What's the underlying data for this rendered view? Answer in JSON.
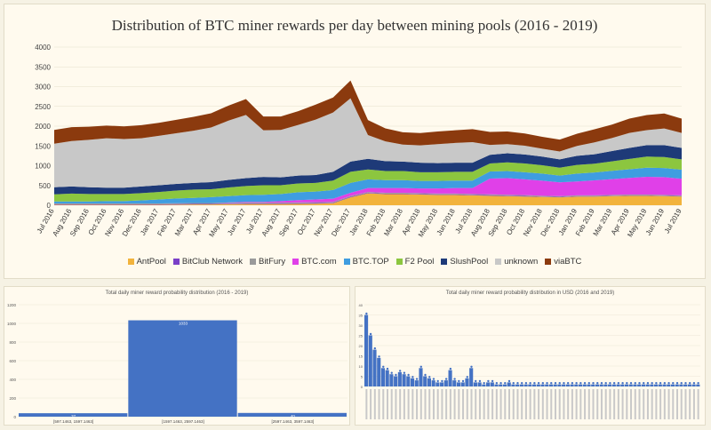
{
  "chart_data": [
    {
      "type": "area",
      "stacked": true,
      "title": "Distribution of BTC miner rewards per day between mining pools  (2016 - 2019)",
      "ylim": [
        0,
        4000
      ],
      "yticks": [
        "0",
        "500",
        "1000",
        "1500",
        "2000",
        "2500",
        "3000",
        "3500",
        "4000"
      ],
      "x": [
        "Jul 2016",
        "Aug 2016",
        "Sep 2016",
        "Oct 2016",
        "Nov 2016",
        "Dec 2016",
        "Jan 2017",
        "Feb 2017",
        "Mar 2017",
        "Apr 2017",
        "May 2017",
        "Jun 2017",
        "Jul 2017",
        "Aug 2017",
        "Sep 2017",
        "Oct 2017",
        "Nov 2017",
        "Dec 2017",
        "Jan 2018",
        "Feb 2018",
        "Mar 2018",
        "Apr 2018",
        "May 2018",
        "Jun 2018",
        "Jul 2018",
        "Aug 2018",
        "Sep 2018",
        "Oct 2018",
        "Nov 2018",
        "Dec 2018",
        "Jan 2019",
        "Feb 2019",
        "Mar 2019",
        "Apr 2019",
        "May 2019",
        "Jun 2019",
        "Jul 2019"
      ],
      "series": [
        {
          "name": "AntPool",
          "color": "#f2b33c",
          "values": [
            10,
            10,
            10,
            10,
            10,
            10,
            10,
            15,
            20,
            20,
            25,
            30,
            30,
            30,
            35,
            40,
            50,
            200,
            300,
            280,
            280,
            270,
            260,
            260,
            250,
            240,
            230,
            220,
            210,
            200,
            220,
            220,
            230,
            240,
            240,
            230,
            220
          ]
        },
        {
          "name": "BitClub Network",
          "color": "#7a3fc7",
          "values": [
            15,
            15,
            15,
            15,
            15,
            15,
            15,
            15,
            15,
            15,
            15,
            15,
            15,
            15,
            15,
            15,
            15,
            15,
            15,
            15,
            15,
            15,
            15,
            15,
            15,
            15,
            15,
            15,
            10,
            10,
            10,
            10,
            10,
            10,
            10,
            10,
            10
          ]
        },
        {
          "name": "BitFury",
          "color": "#9a9a9a",
          "values": [
            20,
            20,
            20,
            20,
            20,
            20,
            20,
            20,
            20,
            20,
            20,
            20,
            20,
            20,
            20,
            20,
            20,
            20,
            20,
            20,
            20,
            20,
            20,
            20,
            20,
            20,
            20,
            20,
            20,
            20,
            20,
            20,
            20,
            20,
            20,
            20,
            20
          ]
        },
        {
          "name": "BTC.com",
          "color": "#e040e8",
          "values": [
            0,
            0,
            0,
            0,
            0,
            0,
            0,
            0,
            0,
            0,
            10,
            20,
            20,
            40,
            60,
            70,
            80,
            80,
            100,
            120,
            120,
            120,
            130,
            140,
            150,
            400,
            420,
            400,
            380,
            350,
            350,
            380,
            400,
            420,
            450,
            450,
            420
          ]
        },
        {
          "name": "BTC.TOP",
          "color": "#3f9de0",
          "values": [
            50,
            50,
            50,
            60,
            60,
            80,
            100,
            120,
            130,
            150,
            160,
            170,
            180,
            180,
            200,
            200,
            220,
            250,
            220,
            200,
            200,
            190,
            190,
            190,
            190,
            180,
            180,
            180,
            180,
            170,
            200,
            200,
            210,
            220,
            230,
            230,
            230
          ]
        },
        {
          "name": "F2 Pool",
          "color": "#8cc63f",
          "values": [
            180,
            200,
            190,
            180,
            180,
            180,
            190,
            200,
            210,
            200,
            220,
            230,
            240,
            220,
            220,
            220,
            240,
            280,
            250,
            230,
            230,
            220,
            220,
            220,
            220,
            200,
            220,
            220,
            210,
            200,
            220,
            220,
            240,
            260,
            280,
            280,
            260
          ]
        },
        {
          "name": "SlushPool",
          "color": "#1e3a78",
          "values": [
            180,
            180,
            170,
            160,
            160,
            170,
            170,
            170,
            170,
            180,
            190,
            200,
            210,
            200,
            200,
            200,
            220,
            260,
            270,
            250,
            240,
            240,
            230,
            230,
            230,
            220,
            230,
            230,
            220,
            210,
            230,
            240,
            260,
            280,
            290,
            300,
            290
          ]
        },
        {
          "name": "unknown",
          "color": "#c8c8c8",
          "values": [
            1100,
            1150,
            1200,
            1250,
            1230,
            1220,
            1250,
            1280,
            1320,
            1380,
            1500,
            1600,
            1180,
            1200,
            1280,
            1400,
            1500,
            1600,
            600,
            500,
            430,
            440,
            480,
            500,
            520,
            250,
            230,
            220,
            200,
            200,
            250,
            300,
            330,
            380,
            380,
            420,
            380
          ]
        },
        {
          "name": "viaBTC",
          "color": "#8b3a0e",
          "values": [
            350,
            350,
            330,
            320,
            320,
            330,
            330,
            340,
            350,
            360,
            380,
            400,
            350,
            340,
            350,
            380,
            380,
            450,
            380,
            330,
            310,
            310,
            320,
            320,
            330,
            330,
            320,
            310,
            300,
            300,
            310,
            330,
            340,
            360,
            380,
            380,
            360
          ]
        }
      ]
    },
    {
      "type": "bar",
      "title": "Total daily miner reward probability distribution (2016 - 2019)",
      "yticks": [
        "0",
        "200",
        "400",
        "600",
        "800",
        "1000",
        "1200"
      ],
      "ylim": [
        0,
        1200
      ],
      "categories": [
        "[597.1463, 1597.1463]",
        "[1597.1463, 2597.1463]",
        "[2597.1463, 3597.1463]"
      ],
      "values": [
        37,
        1033,
        40
      ]
    },
    {
      "type": "bar",
      "title": "Total daily miner reward probability distribution in USD (2016 and 2019)",
      "yticks": [
        "0",
        "5",
        "10",
        "15",
        "20",
        "25",
        "30",
        "35",
        "40"
      ],
      "ylim": [
        0,
        40
      ],
      "values": [
        35,
        25,
        18,
        14,
        9,
        8,
        6,
        5,
        7,
        6,
        5,
        4,
        3,
        9,
        5,
        4,
        3,
        2,
        2,
        3,
        8,
        3,
        2,
        2,
        4,
        9,
        2,
        2,
        1,
        2,
        2,
        1,
        1,
        1,
        2,
        1,
        1,
        1,
        1,
        1,
        1,
        1,
        1,
        1,
        1,
        1,
        1,
        1,
        1,
        1,
        1,
        1,
        1,
        1,
        1,
        1,
        1,
        1,
        1,
        1,
        1,
        1,
        1,
        1,
        1,
        1,
        1,
        1,
        1,
        1,
        1,
        1,
        1,
        1,
        1,
        1,
        1,
        1,
        1,
        1
      ]
    }
  ]
}
